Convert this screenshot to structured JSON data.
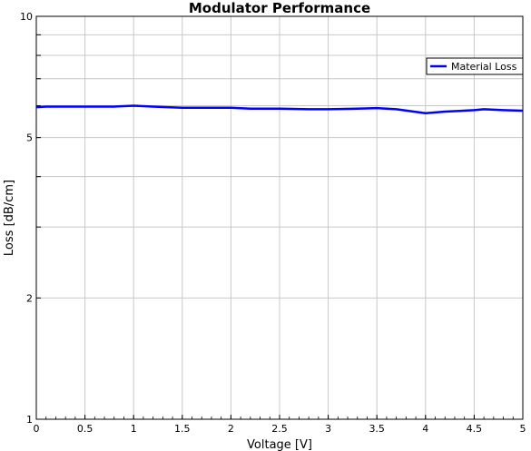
{
  "chart_data": {
    "type": "line",
    "title": "Modulator Performance",
    "xlabel": "Voltage [V]",
    "ylabel": "Loss [dB/cm]",
    "xlim": [
      0,
      5
    ],
    "ylim": [
      1,
      10
    ],
    "yscale": "log",
    "grid": true,
    "legend_position": "top-right",
    "x_ticks": [
      0,
      0.5,
      1,
      1.5,
      2,
      2.5,
      3,
      3.5,
      4,
      4.5,
      5
    ],
    "x_tick_labels": [
      "0",
      "0.5",
      "1",
      "1.5",
      "2",
      "2.5",
      "3",
      "3.5",
      "4",
      "4.5",
      "5"
    ],
    "y_ticks": [
      1,
      2,
      5,
      10
    ],
    "y_tick_labels": [
      "1",
      "2",
      "5",
      "10"
    ],
    "series": [
      {
        "name": "Material Loss",
        "color": "#0000ff",
        "x": [
          0,
          0.1,
          0.8,
          1.0,
          1.2,
          1.5,
          2.0,
          2.2,
          2.5,
          2.8,
          3.0,
          3.3,
          3.5,
          3.7,
          4.0,
          4.2,
          4.5,
          4.6,
          4.8,
          5.0
        ],
        "y": [
          5.95,
          5.97,
          5.97,
          6.0,
          5.97,
          5.93,
          5.93,
          5.9,
          5.9,
          5.88,
          5.88,
          5.9,
          5.92,
          5.88,
          5.75,
          5.8,
          5.85,
          5.88,
          5.85,
          5.83
        ]
      }
    ]
  }
}
